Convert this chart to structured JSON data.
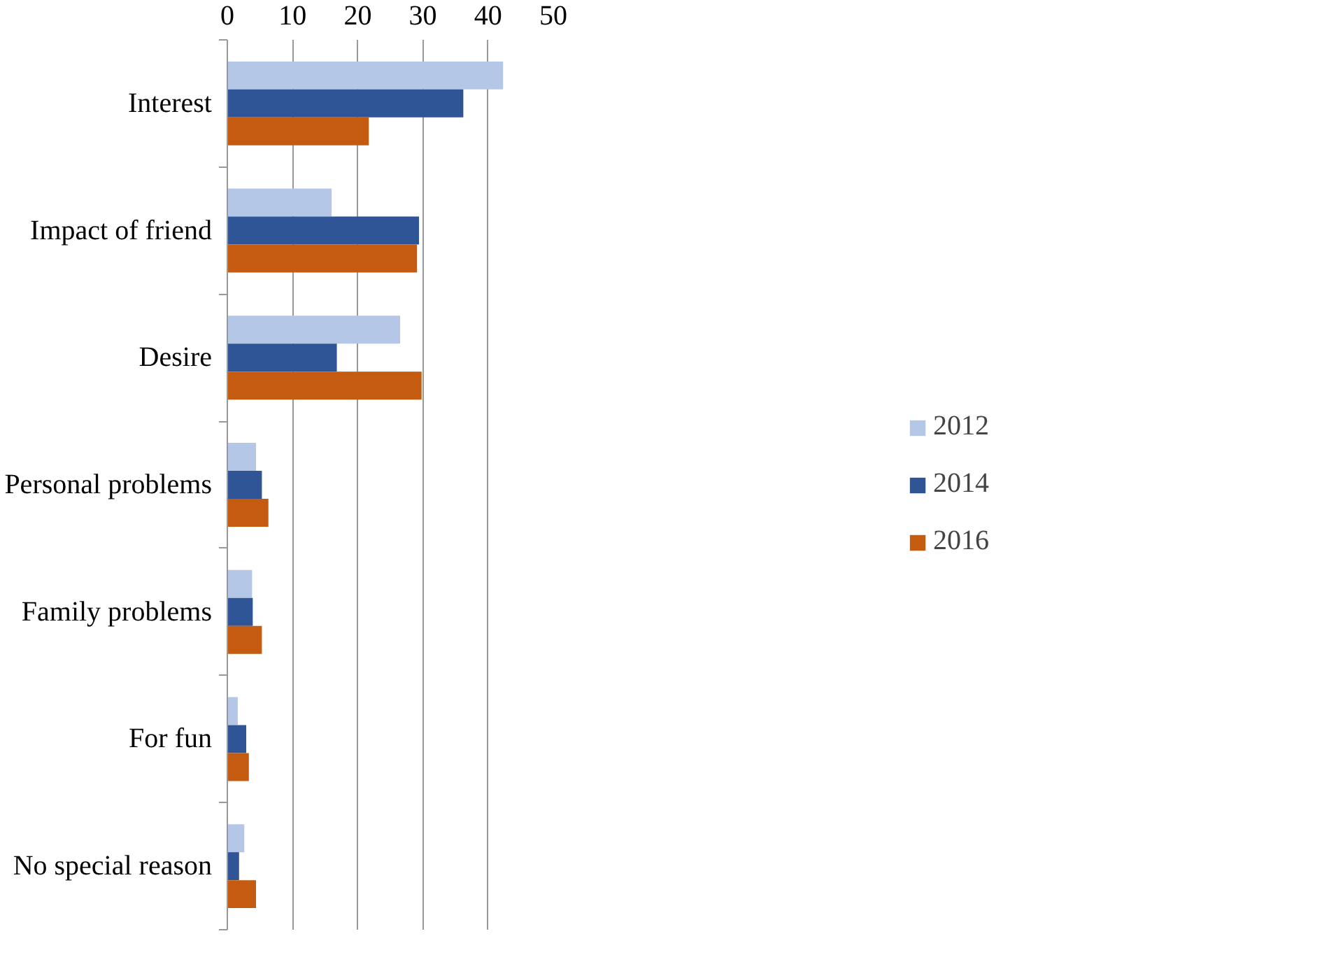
{
  "chart_data": {
    "type": "bar",
    "orientation": "horizontal",
    "categories": [
      "Interest",
      "Impact of friend",
      "Desire",
      "Personal problems",
      "Family problems",
      "For fun",
      "No special reason"
    ],
    "series": [
      {
        "name": "2012",
        "color": "#b4c7e7",
        "values": [
          42.3,
          16.0,
          26.5,
          4.4,
          3.8,
          1.6,
          2.6
        ]
      },
      {
        "name": "2014",
        "color": "#2f5597",
        "values": [
          36.2,
          29.4,
          16.8,
          5.3,
          3.9,
          2.9,
          1.8
        ]
      },
      {
        "name": "2016",
        "color": "#c55a11",
        "values": [
          21.7,
          29.1,
          29.8,
          6.3,
          5.3,
          3.3,
          4.4
        ]
      }
    ],
    "xlim": [
      0,
      50
    ],
    "xticks": [
      0,
      10,
      20,
      30,
      40,
      50
    ],
    "grid": "x",
    "legend": "right"
  }
}
